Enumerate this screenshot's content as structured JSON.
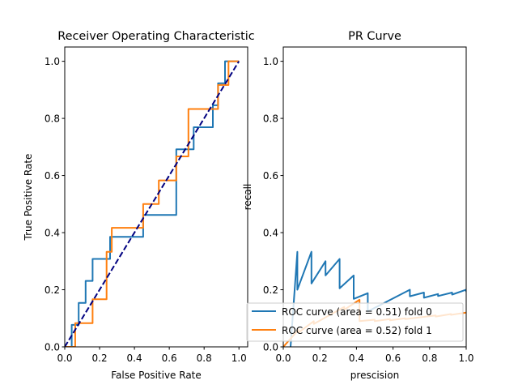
{
  "chart_data": [
    {
      "type": "line",
      "title": "Receiver Operating Characteristic",
      "xlabel": "False Positive Rate",
      "ylabel": "True Positive Rate",
      "xlim": [
        0,
        1.05
      ],
      "ylim": [
        0,
        1.05
      ],
      "xticks": [
        "0.0",
        "0.2",
        "0.4",
        "0.6",
        "0.8",
        "1.0"
      ],
      "yticks": [
        "0.0",
        "0.2",
        "0.4",
        "0.6",
        "0.8",
        "1.0"
      ],
      "grid": false,
      "series": [
        {
          "color": "#1f77b4",
          "style": "solid",
          "x": [
            0,
            0.04,
            0.04,
            0.08,
            0.08,
            0.12,
            0.12,
            0.16,
            0.16,
            0.26,
            0.26,
            0.45,
            0.45,
            0.64,
            0.64,
            0.74,
            0.74,
            0.85,
            0.85,
            0.88,
            0.88,
            0.92,
            0.92,
            1.0
          ],
          "y": [
            0,
            0,
            0.077,
            0.077,
            0.154,
            0.154,
            0.231,
            0.231,
            0.308,
            0.308,
            0.385,
            0.385,
            0.462,
            0.462,
            0.692,
            0.692,
            0.769,
            0.769,
            0.846,
            0.846,
            0.923,
            0.923,
            1.0,
            1.0
          ]
        },
        {
          "color": "#ff7f0e",
          "style": "solid",
          "x": [
            0,
            0.06,
            0.06,
            0.16,
            0.16,
            0.24,
            0.24,
            0.27,
            0.27,
            0.45,
            0.45,
            0.54,
            0.54,
            0.64,
            0.64,
            0.71,
            0.71,
            0.88,
            0.88,
            0.94,
            0.94,
            1.0
          ],
          "y": [
            0,
            0,
            0.083,
            0.083,
            0.167,
            0.167,
            0.333,
            0.333,
            0.417,
            0.417,
            0.5,
            0.5,
            0.583,
            0.583,
            0.667,
            0.667,
            0.833,
            0.833,
            0.917,
            0.917,
            1.0,
            1.0
          ]
        },
        {
          "color": "#000080",
          "style": "dashed",
          "x": [
            0,
            1
          ],
          "y": [
            0,
            1
          ]
        }
      ]
    },
    {
      "type": "line",
      "title": "PR Curve",
      "xlabel": "prescision",
      "ylabel": "recall",
      "xlim": [
        0,
        1.0
      ],
      "ylim": [
        0,
        1.05
      ],
      "xticks": [
        "0.0",
        "0.2",
        "0.4",
        "0.6",
        "0.8",
        "1.0"
      ],
      "yticks": [
        "0.0",
        "0.2",
        "0.4",
        "0.6",
        "0.8",
        "1.0"
      ],
      "grid": false,
      "legend_position": "lower right",
      "series": [
        {
          "name": "ROC curve (area = 0.51) fold 0",
          "color": "#1f77b4",
          "style": "solid",
          "x": [
            0.04,
            0.077,
            0.077,
            0.154,
            0.154,
            0.231,
            0.231,
            0.308,
            0.308,
            0.385,
            0.385,
            0.462,
            0.462,
            0.692,
            0.692,
            0.769,
            0.769,
            0.846,
            0.846,
            0.923,
            0.923,
            1.0,
            1.0
          ],
          "y": [
            0.0,
            0.333,
            0.2,
            0.333,
            0.222,
            0.3,
            0.25,
            0.308,
            0.205,
            0.25,
            0.168,
            0.188,
            0.124,
            0.2,
            0.177,
            0.19,
            0.172,
            0.185,
            0.178,
            0.19,
            0.183,
            0.2,
            0.192
          ]
        },
        {
          "name": "ROC curve (area = 0.52) fold 1",
          "color": "#ff7f0e",
          "style": "solid",
          "x": [
            0.0,
            0.083,
            0.083,
            0.167,
            0.167,
            0.333,
            0.333,
            0.417,
            0.417,
            0.5,
            0.5,
            0.583,
            0.583,
            0.667,
            0.667,
            0.833,
            0.833,
            0.917,
            0.917,
            1.0
          ],
          "y": [
            0.0,
            0.06,
            0.05,
            0.09,
            0.08,
            0.14,
            0.13,
            0.165,
            0.09,
            0.095,
            0.09,
            0.097,
            0.093,
            0.1,
            0.097,
            0.11,
            0.106,
            0.115,
            0.112,
            0.12
          ]
        }
      ]
    }
  ]
}
